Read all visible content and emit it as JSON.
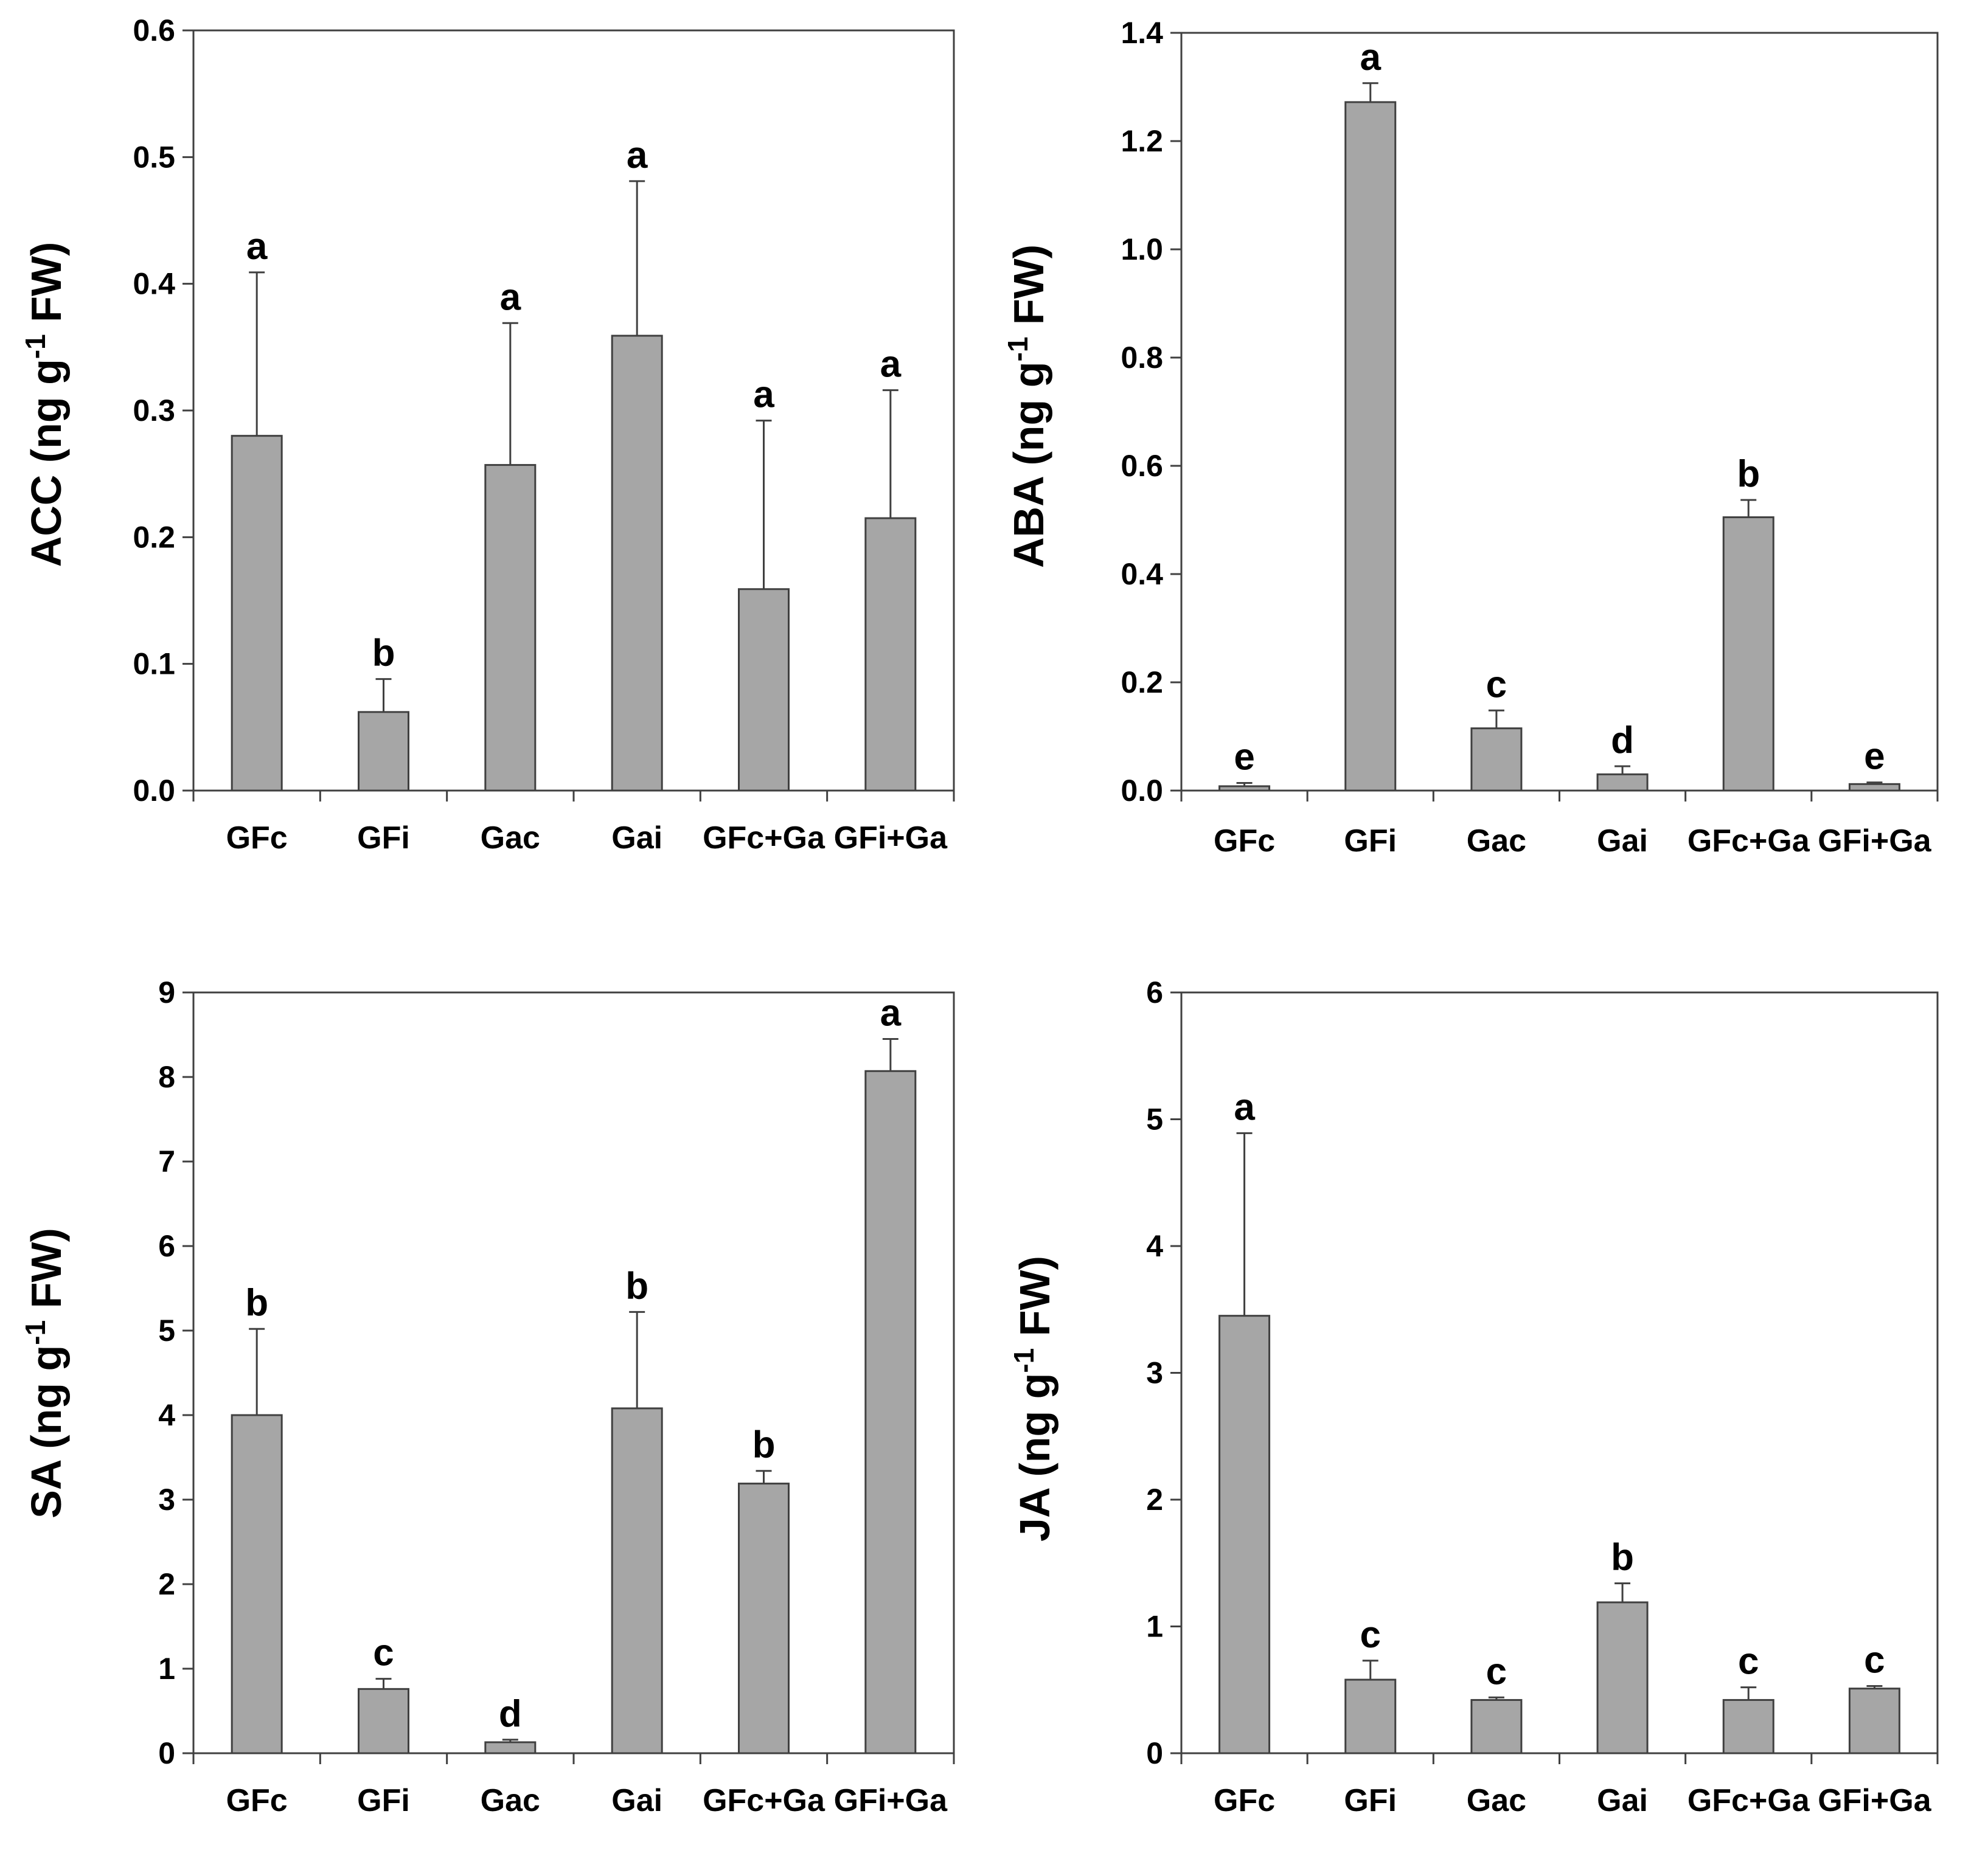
{
  "colors": {
    "bar": "#a6a6a6",
    "bar_edge": "#404040",
    "axis": "#404040"
  },
  "chart_data": [
    {
      "type": "bar",
      "title": "",
      "ylabel": "ACC (ng g-1 FW)",
      "ylabel_parts": {
        "prefix": "ACC (ng g",
        "superscript": "-1",
        "suffix": " FW)"
      },
      "categories": [
        "GFc",
        "GFi",
        "Gac",
        "Gai",
        "GFc+Ga",
        "GFi+Ga"
      ],
      "values": [
        0.28,
        0.062,
        0.257,
        0.359,
        0.159,
        0.215
      ],
      "errors": [
        0.129,
        0.026,
        0.112,
        0.122,
        0.133,
        0.101
      ],
      "letters": [
        "a",
        "b",
        "a",
        "a",
        "a",
        "a"
      ],
      "ylim": [
        0,
        0.6
      ],
      "yticks": [
        0,
        0.1,
        0.2,
        0.3,
        0.4,
        0.5,
        0.6
      ],
      "ytick_labels": [
        "0.0",
        "0.1",
        "0.2",
        "0.3",
        "0.4",
        "0.5",
        "0.6"
      ],
      "grid": false
    },
    {
      "type": "bar",
      "title": "",
      "ylabel": "ABA (ng g-1 FW)",
      "ylabel_parts": {
        "prefix": "ABA (ng g",
        "superscript": "-1",
        "suffix": " FW)"
      },
      "categories": [
        "GFc",
        "GFi",
        "Gac",
        "Gai",
        "GFc+Ga",
        "GFi+Ga"
      ],
      "values": [
        0.008,
        1.272,
        0.115,
        0.03,
        0.505,
        0.012
      ],
      "errors": [
        0.006,
        0.035,
        0.033,
        0.015,
        0.032,
        0.003
      ],
      "letters": [
        "e",
        "a",
        "c",
        "d",
        "b",
        "e"
      ],
      "ylim": [
        0,
        1.4
      ],
      "yticks": [
        0,
        0.2,
        0.4,
        0.6,
        0.8,
        1.0,
        1.2,
        1.4
      ],
      "ytick_labels": [
        "0.0",
        "0.2",
        "0.4",
        "0.6",
        "0.8",
        "1.0",
        "1.2",
        "1.4"
      ],
      "grid": false
    },
    {
      "type": "bar",
      "title": "",
      "ylabel": "SA (ng g-1 FW)",
      "ylabel_parts": {
        "prefix": "SA (ng g",
        "superscript": "-1",
        "suffix": " FW)"
      },
      "categories": [
        "GFc",
        "GFi",
        "Gac",
        "Gai",
        "GFc+Ga",
        "GFi+Ga"
      ],
      "values": [
        4.0,
        0.76,
        0.13,
        4.08,
        3.19,
        8.07
      ],
      "errors": [
        1.02,
        0.12,
        0.03,
        1.14,
        0.15,
        0.38
      ],
      "letters": [
        "b",
        "c",
        "d",
        "b",
        "b",
        "a"
      ],
      "ylim": [
        0,
        9
      ],
      "yticks": [
        0,
        1,
        2,
        3,
        4,
        5,
        6,
        7,
        8,
        9
      ],
      "ytick_labels": [
        "0",
        "1",
        "2",
        "3",
        "4",
        "5",
        "6",
        "7",
        "8",
        "9"
      ],
      "grid": false
    },
    {
      "type": "bar",
      "title": "",
      "ylabel": "JA (ng g-1 FW)",
      "ylabel_parts": {
        "prefix": "JA (ng g",
        "superscript": "-1",
        "suffix": " FW)"
      },
      "categories": [
        "GFc",
        "GFi",
        "Gac",
        "Gai",
        "GFc+Ga",
        "GFi+Ga"
      ],
      "values": [
        3.45,
        0.58,
        0.42,
        1.19,
        0.42,
        0.51
      ],
      "errors": [
        1.44,
        0.15,
        0.02,
        0.15,
        0.1,
        0.02
      ],
      "letters": [
        "a",
        "c",
        "c",
        "b",
        "c",
        "c"
      ],
      "ylim": [
        0,
        6
      ],
      "yticks": [
        0,
        1,
        2,
        3,
        4,
        5,
        6
      ],
      "ytick_labels": [
        "0",
        "1",
        "2",
        "3",
        "4",
        "5",
        "6"
      ],
      "grid": false
    }
  ]
}
